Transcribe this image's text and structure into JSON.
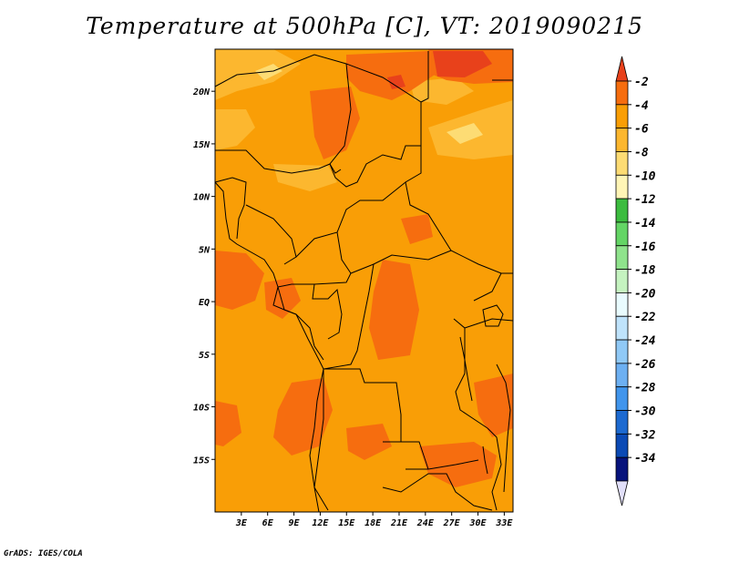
{
  "title": "Temperature at 500hPa [C], VT: 2019090215",
  "credit": "GrADS: IGES/COLA",
  "chart_data": {
    "type": "heatmap",
    "variable": "Temperature at 500hPa",
    "unit": "C",
    "valid_time": "2019090215",
    "lon_range": [
      0,
      34
    ],
    "lat_range": [
      -20,
      24
    ],
    "x_ticks": [
      "3E",
      "6E",
      "9E",
      "12E",
      "15E",
      "18E",
      "21E",
      "24E",
      "27E",
      "30E",
      "33E"
    ],
    "y_ticks": [
      "20N",
      "15N",
      "10N",
      "5N",
      "EQ",
      "5S",
      "10S",
      "15S"
    ],
    "colorbar": {
      "labels": [
        "-2",
        "-4",
        "-6",
        "-8",
        "-10",
        "-12",
        "-14",
        "-16",
        "-18",
        "-20",
        "-22",
        "-24",
        "-26",
        "-28",
        "-30",
        "-32",
        "-34"
      ],
      "colors": [
        "#e8411b",
        "#f66d0f",
        "#f99e06",
        "#fcb72f",
        "#fddc74",
        "#fff5b6",
        "#3cbc3f",
        "#64d565",
        "#8fe38c",
        "#c5f3c0",
        "#e9fbfe",
        "#bfe3fb",
        "#90c9f6",
        "#6db0f2",
        "#4195ec",
        "#1d6ad1",
        "#0b4ab5",
        "#07137c",
        "#e1dff9"
      ]
    },
    "dominant_range": "-6 to -4",
    "warm_patch_range": "-4 to -2"
  }
}
